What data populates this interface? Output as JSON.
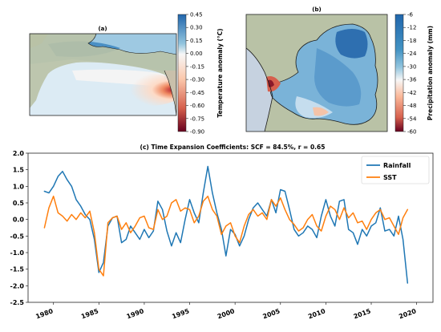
{
  "panel_a": {
    "label": "(a)",
    "colorbar_label": "Temperature anomaly (°C)",
    "ticks": [
      "0.45",
      "0.30",
      "0.15",
      "0.00",
      "-0.15",
      "-0.30",
      "-0.45",
      "-0.60",
      "-0.75",
      "-0.90"
    ]
  },
  "panel_b": {
    "label": "(b)",
    "colorbar_label": "Precipitation anomaly (mm)",
    "ticks": [
      "-6",
      "-12",
      "-18",
      "-24",
      "-30",
      "-36",
      "-42",
      "-48",
      "-54",
      "-60"
    ]
  },
  "colors": {
    "rainfall": "#1f77b4",
    "sst": "#ff7f0e",
    "neg_strong": "#67001f",
    "neg_mid": "#d6604d",
    "neutral": "#f7f7f7",
    "pos_mid": "#92c5de",
    "pos_strong": "#2166ac",
    "land": "#b9c2a6",
    "coast": "#1a1a1a"
  },
  "chart_data": {
    "type": "line",
    "title": "(c) Time Expansion Coefficients: SCF = 84.5%,  r = 0.65",
    "xlabel": "",
    "ylabel": "",
    "xlim": [
      1977.2,
      2021.8
    ],
    "ylim": [
      -2.5,
      2.0
    ],
    "x_ticks": [
      1980,
      1985,
      1990,
      1995,
      2000,
      2005,
      2010,
      2015,
      2020
    ],
    "y_ticks": [
      -2.5,
      -2.0,
      -1.5,
      -1.0,
      -0.5,
      0.0,
      0.5,
      1.0,
      1.5,
      2.0
    ],
    "y_tick_labels": [
      "-2.5",
      "-2.0",
      "-1.5",
      "-1.0",
      "-0.5",
      "0.0",
      "0.5",
      "1.0",
      "1.5",
      "2.0"
    ],
    "grid": false,
    "legend_position": "top-right",
    "series": [
      {
        "name": "Rainfall",
        "color": "#1f77b4",
        "x": [
          1979.0,
          1979.5,
          1980.0,
          1980.5,
          1981.0,
          1981.5,
          1982.0,
          1982.5,
          1983.0,
          1983.5,
          1984.0,
          1984.5,
          1985.0,
          1985.5,
          1986.0,
          1986.5,
          1987.0,
          1987.5,
          1988.0,
          1988.5,
          1989.0,
          1989.5,
          1990.0,
          1990.5,
          1991.0,
          1991.5,
          1992.0,
          1992.5,
          1993.0,
          1993.5,
          1994.0,
          1994.5,
          1995.0,
          1995.5,
          1996.0,
          1996.5,
          1997.0,
          1997.5,
          1998.0,
          1998.5,
          1999.0,
          1999.5,
          2000.0,
          2000.5,
          2001.0,
          2001.5,
          2002.0,
          2002.5,
          2003.0,
          2003.5,
          2004.0,
          2004.5,
          2005.0,
          2005.5,
          2006.0,
          2006.5,
          2007.0,
          2007.5,
          2008.0,
          2008.5,
          2009.0,
          2009.5,
          2010.0,
          2010.5,
          2011.0,
          2011.5,
          2012.0,
          2012.5,
          2013.0,
          2013.5,
          2014.0,
          2014.5,
          2015.0,
          2015.5,
          2016.0,
          2016.5,
          2017.0,
          2017.5,
          2018.0,
          2018.5,
          2019.0
        ],
        "y": [
          0.85,
          0.8,
          1.0,
          1.3,
          1.45,
          1.2,
          1.0,
          0.6,
          0.4,
          0.15,
          0.0,
          -0.6,
          -1.6,
          -1.3,
          -0.2,
          0.05,
          0.1,
          -0.7,
          -0.6,
          -0.2,
          -0.4,
          -0.6,
          -0.3,
          -0.55,
          -0.35,
          0.55,
          0.3,
          -0.35,
          -0.8,
          -0.4,
          -0.7,
          0.0,
          0.6,
          0.2,
          -0.1,
          0.8,
          1.6,
          0.8,
          0.2,
          -0.3,
          -1.1,
          -0.3,
          -0.45,
          -0.8,
          -0.5,
          0.0,
          0.35,
          0.5,
          0.3,
          0.1,
          0.6,
          0.2,
          0.9,
          0.85,
          0.3,
          -0.3,
          -0.5,
          -0.4,
          -0.2,
          -0.3,
          -0.55,
          0.1,
          0.6,
          0.1,
          -0.2,
          0.55,
          0.6,
          -0.3,
          -0.4,
          -0.75,
          -0.3,
          -0.5,
          -0.2,
          -0.1,
          0.35,
          -0.35,
          -0.3,
          -0.5,
          0.1,
          -0.6,
          -1.92
        ]
      },
      {
        "name": "SST",
        "color": "#ff7f0e",
        "x": [
          1979.0,
          1979.5,
          1980.0,
          1980.5,
          1981.0,
          1981.5,
          1982.0,
          1982.5,
          1983.0,
          1983.5,
          1984.0,
          1984.5,
          1985.0,
          1985.5,
          1986.0,
          1986.5,
          1987.0,
          1987.5,
          1988.0,
          1988.5,
          1989.0,
          1989.5,
          1990.0,
          1990.5,
          1991.0,
          1991.5,
          1992.0,
          1992.5,
          1993.0,
          1993.5,
          1994.0,
          1994.5,
          1995.0,
          1995.5,
          1996.0,
          1996.5,
          1997.0,
          1997.5,
          1998.0,
          1998.5,
          1999.0,
          1999.5,
          2000.0,
          2000.5,
          2001.0,
          2001.5,
          2002.0,
          2002.5,
          2003.0,
          2003.5,
          2004.0,
          2004.5,
          2005.0,
          2005.5,
          2006.0,
          2006.5,
          2007.0,
          2007.5,
          2008.0,
          2008.5,
          2009.0,
          2009.5,
          2010.0,
          2010.5,
          2011.0,
          2011.5,
          2012.0,
          2012.5,
          2013.0,
          2013.5,
          2014.0,
          2014.5,
          2015.0,
          2015.5,
          2016.0,
          2016.5,
          2017.0,
          2017.5,
          2018.0,
          2018.5,
          2019.0
        ],
        "y": [
          -0.25,
          0.35,
          0.7,
          0.2,
          0.1,
          -0.05,
          0.15,
          0.0,
          0.2,
          0.05,
          0.25,
          -0.4,
          -1.5,
          -1.7,
          -0.1,
          0.05,
          0.1,
          -0.3,
          -0.1,
          -0.4,
          -0.2,
          0.05,
          0.1,
          -0.25,
          -0.3,
          0.3,
          0.0,
          0.1,
          0.5,
          0.6,
          0.25,
          0.35,
          0.3,
          -0.1,
          0.1,
          0.55,
          0.7,
          0.3,
          0.1,
          -0.45,
          -0.2,
          -0.1,
          -0.5,
          -0.7,
          -0.2,
          0.15,
          0.3,
          0.1,
          0.2,
          0.0,
          0.6,
          0.4,
          0.65,
          0.3,
          0.0,
          -0.15,
          -0.35,
          -0.25,
          0.0,
          0.15,
          -0.2,
          -0.35,
          0.1,
          0.4,
          0.3,
          0.0,
          0.35,
          0.05,
          0.2,
          -0.1,
          -0.05,
          -0.3,
          0.0,
          0.2,
          0.3,
          0.0,
          0.05,
          -0.2,
          -0.45,
          0.05,
          0.3
        ]
      }
    ]
  }
}
